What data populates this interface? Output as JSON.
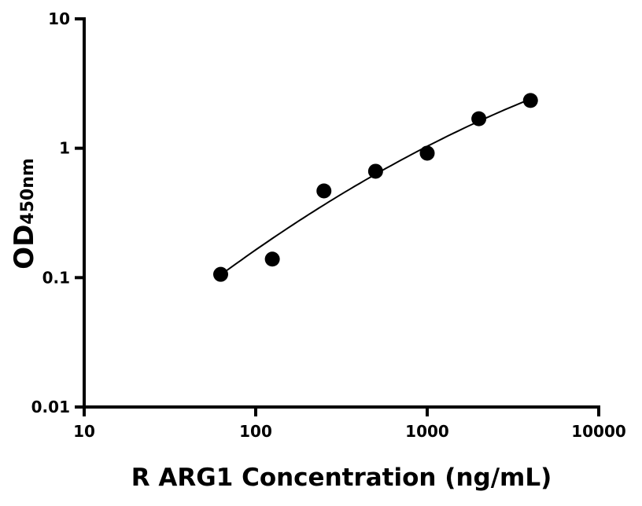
{
  "chart_data": {
    "type": "scatter",
    "title": "",
    "xlabel": "R ARG1 Concentration (ng/mL)",
    "ylabel": {
      "main": "OD",
      "subscript": "450nm"
    },
    "xscale": "log",
    "yscale": "log",
    "xlim": [
      10,
      10000
    ],
    "ylim": [
      0.01,
      10
    ],
    "grid": false,
    "x_ticks": [
      10,
      100,
      1000,
      10000
    ],
    "x_tick_labels": [
      "10",
      "100",
      "1000",
      "10000"
    ],
    "y_ticks": [
      0.01,
      0.1,
      1,
      10
    ],
    "y_tick_labels": [
      "0.01",
      "0.1",
      "1",
      "10"
    ],
    "points": {
      "x": [
        62.5,
        125,
        250,
        500,
        1000,
        2000,
        4000
      ],
      "y": [
        0.106,
        0.139,
        0.468,
        0.664,
        0.916,
        1.69,
        2.34
      ],
      "color": "#000000"
    },
    "fit_curve": {
      "x": [
        62.5,
        500,
        4000
      ],
      "y": [
        0.105,
        0.63,
        2.4
      ],
      "color": "#000000"
    }
  }
}
